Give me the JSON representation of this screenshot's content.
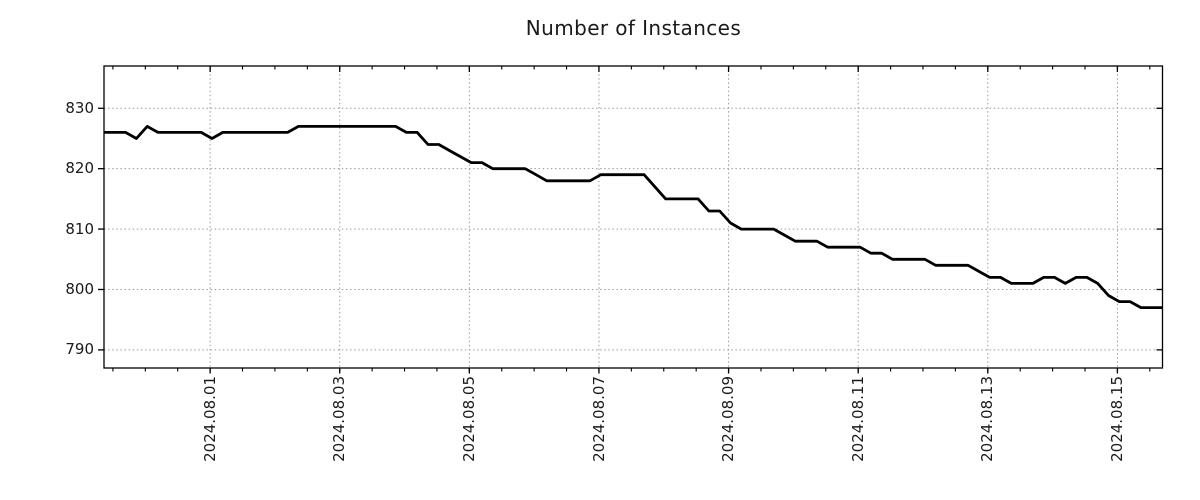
{
  "title": "Number of Instances",
  "chart_data": {
    "type": "line",
    "title": "Number of Instances",
    "xlabel": "",
    "ylabel": "",
    "grid": {
      "style": "dotted",
      "color": "#9b9b9b"
    },
    "legend": "none",
    "sample_interval_hours": 4,
    "x_range_hours": 392,
    "series": [
      {
        "name": "instances",
        "color": "#000000",
        "values": [
          826,
          826,
          826,
          825,
          827,
          826,
          826,
          826,
          826,
          826,
          825,
          826,
          826,
          826,
          826,
          826,
          826,
          826,
          827,
          827,
          827,
          827,
          827,
          827,
          827,
          827,
          827,
          827,
          826,
          826,
          824,
          824,
          823,
          822,
          821,
          821,
          820,
          820,
          820,
          820,
          819,
          818,
          818,
          818,
          818,
          818,
          819,
          819,
          819,
          819,
          819,
          817,
          815,
          815,
          815,
          815,
          813,
          813,
          811,
          810,
          810,
          810,
          810,
          809,
          808,
          808,
          808,
          807,
          807,
          807,
          807,
          806,
          806,
          805,
          805,
          805,
          805,
          804,
          804,
          804,
          804,
          803,
          802,
          802,
          801,
          801,
          801,
          802,
          802,
          801,
          802,
          802,
          801,
          799,
          798,
          798,
          797,
          797,
          797
        ]
      }
    ],
    "x_axis": {
      "tick_labels": [
        "2024.08.01",
        "2024.08.03",
        "2024.08.05",
        "2024.08.07",
        "2024.08.09",
        "2024.08.11",
        "2024.08.13",
        "2024.08.15"
      ],
      "major_tick_start_h": 39.3,
      "major_tick_step_h": 48,
      "minor_tick_start_h": 3.3,
      "minor_tick_step_h": 12,
      "label_rotation_deg": -90
    },
    "y_axis": {
      "tick_values": [
        790,
        800,
        810,
        820,
        830
      ],
      "tick_labels": [
        "790",
        "800",
        "810",
        "820",
        "830"
      ],
      "ylim": [
        787,
        837
      ]
    }
  },
  "colors": {
    "background": "#ffffff",
    "axis": "#000000",
    "text": "#1a1a1a",
    "line": "#000000",
    "grid": "#9b9b9b"
  }
}
